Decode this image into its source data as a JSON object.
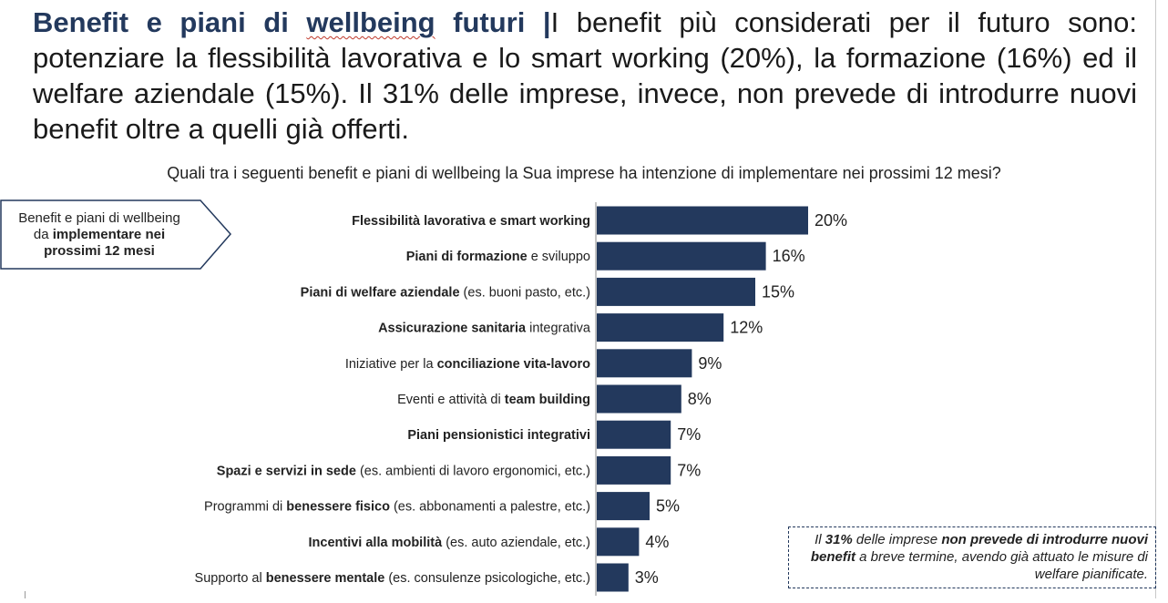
{
  "headline": {
    "title_part1": "Benefit e piani di ",
    "title_part2": "wellbeing",
    "title_part3": " futuri",
    "separator": " |",
    "body": "I benefit più considerati per il futuro sono: potenziare la flessibilità lavorativa e lo smart working (20%), la formazione (16%) ed il welfare aziendale (15%). Il 31% delle imprese, invece, non prevede di introdurre nuovi benefit oltre a quelli già offerti."
  },
  "question": "Quali tra i seguenti benefit e piani di wellbeing la Sua imprese ha intenzione di implementare nei prossimi 12 mesi?",
  "side_label": {
    "line1": "Benefit e piani di wellbeing",
    "line2_pre": "da ",
    "line2_bold": "implementare nei",
    "line3_bold": "prossimi 12 mesi"
  },
  "callout": {
    "pre": "Il ",
    "bold1": "31%",
    "mid": " delle imprese ",
    "bold2": "non prevede di introdurre nuovi benefit",
    "post": " a breve termine, avendo già attuato le misure di welfare pianificate."
  },
  "colors": {
    "bar": "#23395d",
    "title": "#23395d"
  },
  "chart_data": {
    "type": "bar",
    "orientation": "horizontal",
    "title": "Quali tra i seguenti benefit e piani di wellbeing la Sua imprese ha intenzione di implementare nei prossimi 12 mesi?",
    "xlabel": "",
    "ylabel": "",
    "xlim": [
      0,
      20
    ],
    "grid": false,
    "categories": [
      [
        {
          "t": "Flessibilità lavorativa e smart working",
          "b": true
        }
      ],
      [
        {
          "t": "Piani di formazione",
          "b": true
        },
        {
          "t": " e sviluppo",
          "b": false
        }
      ],
      [
        {
          "t": "Piani di welfare aziendale",
          "b": true
        },
        {
          "t": " (es. buoni pasto, etc.)",
          "b": false
        }
      ],
      [
        {
          "t": "Assicurazione sanitaria",
          "b": true
        },
        {
          "t": " integrativa",
          "b": false
        }
      ],
      [
        {
          "t": "Iniziative per la ",
          "b": false
        },
        {
          "t": "conciliazione vita-lavoro",
          "b": true
        }
      ],
      [
        {
          "t": "Eventi e attività di ",
          "b": false
        },
        {
          "t": "team building",
          "b": true
        }
      ],
      [
        {
          "t": "Piani pensionistici integrativi",
          "b": true
        }
      ],
      [
        {
          "t": "Spazi e servizi in sede",
          "b": true
        },
        {
          "t": " (es. ambienti di lavoro ergonomici, etc.)",
          "b": false
        }
      ],
      [
        {
          "t": "Programmi di ",
          "b": false
        },
        {
          "t": "benessere fisico",
          "b": true
        },
        {
          "t": " (es. abbonamenti a palestre, etc.)",
          "b": false
        }
      ],
      [
        {
          "t": "Incentivi alla mobilità",
          "b": true
        },
        {
          "t": " (es. auto aziendale, etc.)",
          "b": false
        }
      ],
      [
        {
          "t": "Supporto al ",
          "b": false
        },
        {
          "t": "benessere mentale",
          "b": true
        },
        {
          "t": " (es. consulenze psicologiche, etc.)",
          "b": false
        }
      ]
    ],
    "values": [
      20,
      16,
      15,
      12,
      9,
      8,
      7,
      7,
      5,
      4,
      3
    ],
    "value_labels": [
      "20%",
      "16%",
      "15%",
      "12%",
      "9%",
      "8%",
      "7%",
      "7%",
      "5%",
      "4%",
      "3%"
    ]
  }
}
